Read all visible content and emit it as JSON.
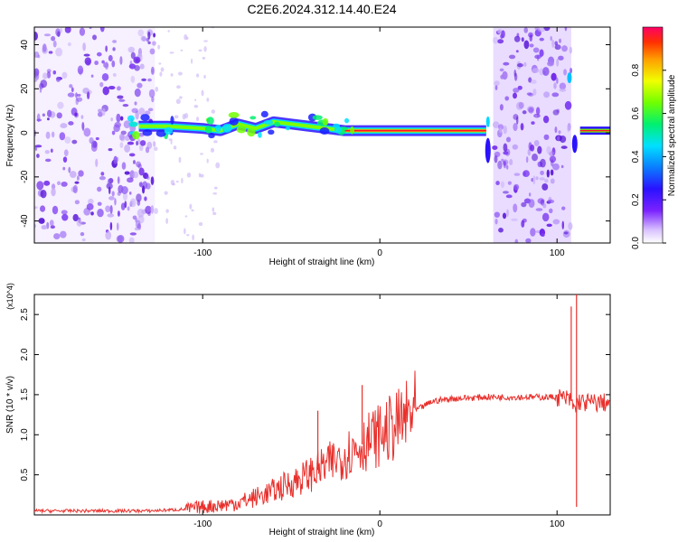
{
  "figure": {
    "title": "C2E6.2024.312.14.40.E24"
  },
  "chart_data": [
    {
      "type": "heatmap",
      "xlabel": "Height of straight line (km)",
      "ylabel": "Frequency (Hz)",
      "xlim": [
        -195,
        130
      ],
      "ylim": [
        -50,
        48
      ],
      "x_ticks": [
        -100,
        0,
        100
      ],
      "y_ticks": [
        -40,
        -20,
        0,
        20,
        40
      ],
      "colorbar": {
        "label": "Normalized spectral amplitude",
        "range": [
          0.0,
          1.0
        ],
        "ticks": [
          0.0,
          0.2,
          0.4,
          0.6,
          0.8
        ]
      },
      "features": {
        "noise_regions_km": [
          [
            -195,
            -127
          ],
          [
            64,
            108
          ]
        ],
        "band_center_hz": [
          [
            -136,
            3
          ],
          [
            -120,
            3
          ],
          [
            -100,
            2
          ],
          [
            -90,
            1
          ],
          [
            -80,
            4
          ],
          [
            -70,
            2
          ],
          [
            -60,
            5
          ],
          [
            -50,
            4
          ],
          [
            -40,
            3
          ],
          [
            -30,
            2
          ],
          [
            -20,
            1
          ],
          [
            -10,
            1
          ],
          [
            0,
            1
          ],
          [
            20,
            1
          ],
          [
            40,
            1
          ],
          [
            60,
            1
          ]
        ],
        "post_noise_band_km": [
          113,
          130
        ],
        "post_noise_band_hz": 1
      }
    },
    {
      "type": "line",
      "xlabel": "Height of straight line (km)",
      "ylabel": "SNR (10 * v/v)",
      "y_multiplier": "(x10^4)",
      "xlim": [
        -195,
        130
      ],
      "ylim": [
        0,
        2.75
      ],
      "x_ticks": [
        -100,
        0,
        100
      ],
      "y_ticks": [
        0.5,
        1.0,
        1.5,
        2.0,
        2.5
      ],
      "y_tick_labels": [
        "0.5",
        "1.0",
        "1.5",
        "2.0",
        "2.5"
      ],
      "series": [
        {
          "color": "#e8302c",
          "x": [
            -195,
            -150,
            -130,
            -110,
            -100,
            -90,
            -80,
            -70,
            -60,
            -50,
            -40,
            -30,
            -20,
            -10,
            0,
            10,
            20,
            30,
            40,
            60,
            80,
            100,
            105,
            108,
            110,
            112,
            115,
            120,
            130
          ],
          "y": [
            0.05,
            0.05,
            0.05,
            0.07,
            0.1,
            0.12,
            0.15,
            0.22,
            0.3,
            0.4,
            0.5,
            0.62,
            0.75,
            0.88,
            1.0,
            1.12,
            1.3,
            1.42,
            1.45,
            1.47,
            1.47,
            1.47,
            1.45,
            1.42,
            1.3,
            1.42,
            1.4,
            1.4,
            1.4
          ]
        }
      ],
      "spikes": [
        {
          "x": -35,
          "y": 1.3
        },
        {
          "x": -10,
          "y": 1.62
        },
        {
          "x": 108,
          "y": 2.6
        },
        {
          "x": 111,
          "y": 2.75
        },
        {
          "x": 111,
          "y": 0.1
        }
      ]
    }
  ]
}
